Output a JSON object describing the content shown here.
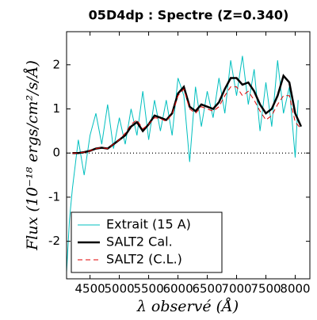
{
  "chart_data": {
    "type": "line",
    "title": "05D4dp : Spectre (Z=0.340)",
    "x_label": "λ observé (Å)",
    "y_label": "Flux (10⁻¹⁸ ergs/cm²/s/Å)",
    "xlim": [
      4100,
      8250
    ],
    "ylim": [
      -2.85,
      2.75
    ],
    "xticks": [
      4500,
      5000,
      5500,
      6000,
      6500,
      7000,
      7500,
      8000
    ],
    "yticks": [
      -2,
      -1,
      0,
      1,
      2
    ],
    "reference_line": 0,
    "legend": "lower left",
    "series": [
      {
        "name": "Extrait (15 A)",
        "color": "#00bfbf",
        "width": 1,
        "dash": "none",
        "x": [
          4100,
          4150,
          4200,
          4300,
          4400,
          4500,
          4600,
          4700,
          4800,
          4900,
          5000,
          5100,
          5200,
          5300,
          5400,
          5500,
          5600,
          5700,
          5800,
          5900,
          6000,
          6100,
          6200,
          6300,
          6400,
          6500,
          6600,
          6700,
          6800,
          6900,
          7000,
          7100,
          7200,
          7300,
          7400,
          7500,
          7600,
          7700,
          7800,
          7900,
          8000,
          8050
        ],
        "values": [
          -2.7,
          -1.5,
          -0.8,
          0.3,
          -0.5,
          0.4,
          0.9,
          0.2,
          1.1,
          0.1,
          0.8,
          0.2,
          1.0,
          0.4,
          1.4,
          0.3,
          1.2,
          0.5,
          1.2,
          0.4,
          1.7,
          1.3,
          -0.2,
          1.5,
          0.6,
          1.4,
          0.8,
          1.7,
          0.9,
          2.1,
          1.3,
          2.2,
          1.1,
          1.9,
          0.5,
          1.6,
          0.6,
          2.1,
          0.9,
          1.5,
          -0.1,
          1.2
        ]
      },
      {
        "name": "SALT2 Cal.",
        "color": "#000000",
        "width": 2.5,
        "dash": "none",
        "x": [
          4200,
          4300,
          4400,
          4500,
          4600,
          4700,
          4800,
          4900,
          5000,
          5100,
          5200,
          5300,
          5400,
          5500,
          5600,
          5700,
          5800,
          5900,
          6000,
          6100,
          6200,
          6300,
          6400,
          6500,
          6600,
          6700,
          6800,
          6900,
          7000,
          7100,
          7200,
          7300,
          7400,
          7500,
          7600,
          7700,
          7800,
          7900,
          8000,
          8100
        ],
        "values": [
          0.0,
          0.0,
          0.02,
          0.05,
          0.1,
          0.12,
          0.1,
          0.2,
          0.3,
          0.4,
          0.6,
          0.7,
          0.5,
          0.65,
          0.85,
          0.8,
          0.75,
          0.9,
          1.35,
          1.5,
          1.05,
          0.95,
          1.1,
          1.05,
          1.0,
          1.15,
          1.45,
          1.7,
          1.7,
          1.55,
          1.6,
          1.4,
          1.1,
          0.9,
          1.0,
          1.3,
          1.75,
          1.6,
          0.9,
          0.6
        ]
      },
      {
        "name": "SALT2 (C.L.)",
        "color": "#e00000",
        "width": 1,
        "dash": "6 4",
        "x": [
          4200,
          4300,
          4400,
          4500,
          4600,
          4700,
          4800,
          4900,
          5000,
          5100,
          5200,
          5300,
          5400,
          5500,
          5600,
          5700,
          5800,
          5900,
          6000,
          6100,
          6200,
          6300,
          6400,
          6500,
          6600,
          6700,
          6800,
          6900,
          7000,
          7100,
          7200,
          7300,
          7400,
          7500,
          7600,
          7700,
          7800,
          7900,
          8000,
          8100
        ],
        "values": [
          0.0,
          0.0,
          0.02,
          0.05,
          0.1,
          0.12,
          0.1,
          0.2,
          0.3,
          0.45,
          0.65,
          0.75,
          0.55,
          0.65,
          0.8,
          0.78,
          0.72,
          0.88,
          1.3,
          1.45,
          1.0,
          0.9,
          1.05,
          1.0,
          0.95,
          1.05,
          1.3,
          1.5,
          1.5,
          1.3,
          1.4,
          1.2,
          0.95,
          0.75,
          0.85,
          1.1,
          1.3,
          1.3,
          0.7,
          0.55
        ]
      }
    ]
  }
}
